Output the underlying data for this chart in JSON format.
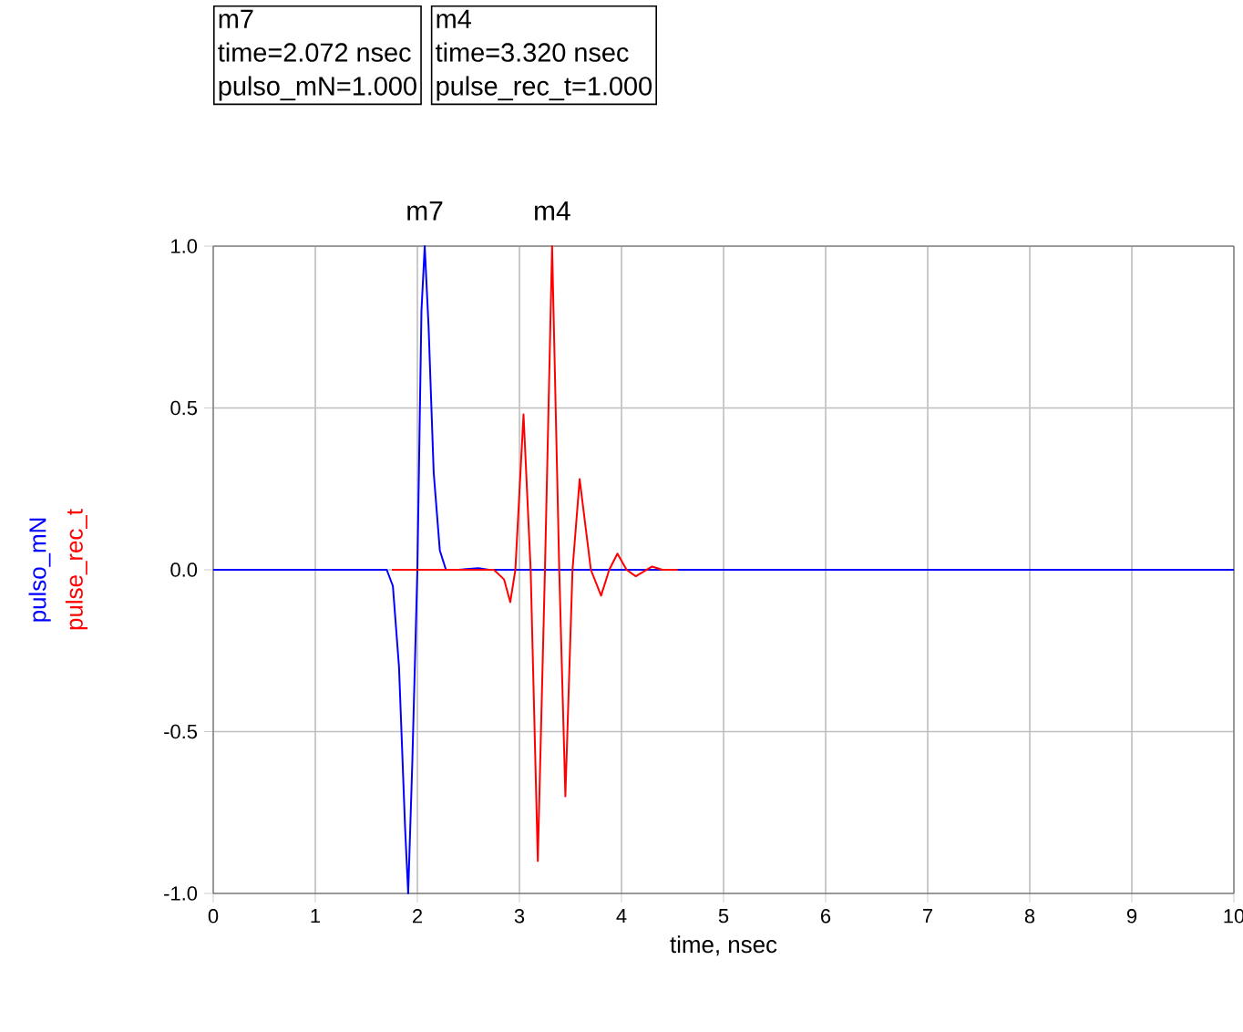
{
  "chart_data": {
    "type": "line",
    "xlabel": "time, nsec",
    "series": [
      {
        "name": "pulso_mN",
        "color": "#0000ff",
        "x": [
          0,
          1.7,
          1.76,
          1.82,
          1.88,
          1.91,
          1.95,
          2.0,
          2.04,
          2.072,
          2.11,
          2.16,
          2.22,
          2.28,
          2.4,
          2.6,
          2.7,
          2.8,
          10
        ],
        "values": [
          0,
          0,
          -0.05,
          -0.3,
          -0.8,
          -1.0,
          -0.6,
          0,
          0.8,
          1.0,
          0.75,
          0.3,
          0.06,
          0,
          0,
          0.005,
          0,
          0,
          0
        ]
      },
      {
        "name": "pulse_rec_t",
        "color": "#ff0000",
        "x": [
          1.75,
          2.6,
          2.75,
          2.85,
          2.91,
          2.96,
          3.04,
          3.11,
          3.18,
          3.25,
          3.32,
          3.39,
          3.45,
          3.52,
          3.59,
          3.7,
          3.8,
          3.88,
          3.96,
          4.05,
          4.14,
          4.3,
          4.4,
          4.55
        ],
        "values": [
          0,
          0,
          0,
          -0.03,
          -0.1,
          0,
          0.48,
          0,
          -0.9,
          0,
          1.0,
          0,
          -0.7,
          0,
          0.28,
          0,
          -0.08,
          0,
          0.05,
          0,
          -0.02,
          0.01,
          0,
          0
        ]
      }
    ],
    "xlim": [
      0,
      10
    ],
    "ylim": [
      -1.0,
      1.0
    ],
    "xticks": [
      0,
      1,
      2,
      3,
      4,
      5,
      6,
      7,
      8,
      9,
      10
    ],
    "yticks": [
      {
        "value": -1.0,
        "label": "-1.0"
      },
      {
        "value": -0.5,
        "label": "-0.5"
      },
      {
        "value": 0,
        "label": "0.0"
      },
      {
        "value": 0.5,
        "label": "0.5"
      },
      {
        "value": 1.0,
        "label": "1.0"
      }
    ],
    "grid": true,
    "annotations": [
      {
        "text": "m7",
        "x": 2.072,
        "y": 1.0
      },
      {
        "text": "m4",
        "x": 3.32,
        "y": 1.0
      },
      "m7",
      "time=2.072 nsec",
      "pulso_mN=1.000",
      "m4",
      "time=3.320 nsec",
      "pulse_rec_t=1.000"
    ]
  }
}
